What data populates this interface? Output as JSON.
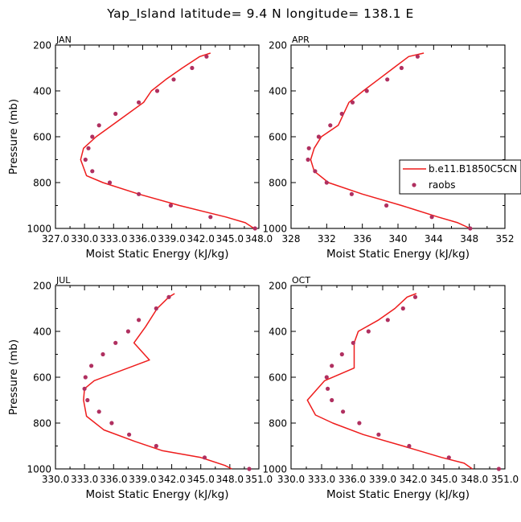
{
  "figure": {
    "title": "Yap_Island  latitude= 9.4 N longitude= 138.1 E"
  },
  "legend": {
    "model_label": "b.e11.B1850C5CN",
    "obs_label": "raobs"
  },
  "colors": {
    "model_line": "#ee1c1c",
    "obs_points": "#b03060",
    "axes": "#000000"
  },
  "chart_data": [
    {
      "type": "line",
      "panel_label": "JAN",
      "xlabel": "Moist Static Energy (kJ/kg)",
      "ylabel": "Pressure (mb)",
      "xlim": [
        327.0,
        348.0
      ],
      "ylim": [
        1000,
        200
      ],
      "xticks": [
        "327.0",
        "330.0",
        "333.0",
        "336.0",
        "339.0",
        "342.0",
        "345.0",
        "348.0"
      ],
      "yticks": [
        "200",
        "400",
        "600",
        "800",
        "1000"
      ],
      "series": [
        {
          "name": "b.e11.B1850C5CN",
          "x": [
            343.0,
            341.9,
            340.1,
            338.4,
            336.9,
            336.1,
            333.5,
            331.2,
            329.9,
            329.6,
            330.2,
            331.9,
            335.6,
            339.8,
            344.6,
            346.6,
            347.5
          ],
          "y": [
            235,
            250,
            300,
            350,
            400,
            450,
            530,
            600,
            650,
            700,
            770,
            800,
            850,
            900,
            950,
            975,
            1000
          ]
        },
        {
          "name": "raobs",
          "x": [
            342.6,
            341.1,
            339.2,
            337.5,
            335.6,
            333.2,
            331.5,
            330.8,
            330.4,
            330.1,
            330.8,
            332.6,
            335.6,
            338.9,
            343.0,
            347.6
          ],
          "y": [
            250,
            300,
            350,
            400,
            450,
            500,
            550,
            600,
            650,
            700,
            750,
            800,
            850,
            900,
            950,
            1000
          ]
        }
      ]
    },
    {
      "type": "line",
      "panel_label": "APR",
      "xlabel": "Moist Static Energy (kJ/kg)",
      "ylabel": "",
      "xlim": [
        328,
        352
      ],
      "ylim": [
        1000,
        200
      ],
      "xticks": [
        "328",
        "332",
        "336",
        "340",
        "344",
        "348",
        "352"
      ],
      "yticks": [
        "200",
        "400",
        "600",
        "800",
        "1000"
      ],
      "series": [
        {
          "name": "b.e11.B1850C5CN",
          "x": [
            342.9,
            341.2,
            339.5,
            337.8,
            336.1,
            334.5,
            333.3,
            331.4,
            330.6,
            330.2,
            330.6,
            332.2,
            336.0,
            340.4,
            344.5,
            346.7,
            348.1
          ],
          "y": [
            235,
            250,
            300,
            350,
            400,
            450,
            550,
            600,
            650,
            700,
            750,
            800,
            850,
            900,
            950,
            975,
            1000
          ]
        },
        {
          "name": "raobs",
          "x": [
            342.2,
            340.4,
            338.8,
            336.5,
            334.9,
            333.7,
            332.4,
            331.1,
            330.0,
            329.9,
            330.7,
            332.0,
            334.8,
            338.7,
            343.8,
            348.1
          ],
          "y": [
            250,
            300,
            350,
            400,
            450,
            500,
            550,
            600,
            650,
            700,
            750,
            800,
            850,
            900,
            950,
            1000
          ]
        }
      ]
    },
    {
      "type": "line",
      "panel_label": "JUL",
      "xlabel": "Moist Static Energy (kJ/kg)",
      "ylabel": "Pressure (mb)",
      "xlim": [
        330.0,
        351.0
      ],
      "ylim": [
        1000,
        200
      ],
      "xticks": [
        "330.0",
        "333.0",
        "336.0",
        "339.0",
        "342.0",
        "345.0",
        "348.0",
        "351.0"
      ],
      "yticks": [
        "200",
        "400",
        "600",
        "800",
        "1000"
      ],
      "series": [
        {
          "name": "b.e11.B1850C5CN",
          "x": [
            342.3,
            341.7,
            340.5,
            339.3,
            338.1,
            339.7,
            334.0,
            333.0,
            332.9,
            333.2,
            335.0,
            338.2,
            341.0,
            345.0,
            347.5,
            348.2
          ],
          "y": [
            235,
            250,
            300,
            380,
            450,
            525,
            615,
            650,
            700,
            770,
            830,
            880,
            920,
            950,
            985,
            1000
          ]
        },
        {
          "name": "raobs",
          "x": [
            341.7,
            340.4,
            338.6,
            337.5,
            336.2,
            334.9,
            333.7,
            333.1,
            333.0,
            333.3,
            334.5,
            335.8,
            337.6,
            340.4,
            345.4,
            350.0
          ],
          "y": [
            250,
            300,
            350,
            400,
            450,
            500,
            550,
            600,
            650,
            700,
            750,
            800,
            850,
            900,
            950,
            1000
          ]
        }
      ]
    },
    {
      "type": "line",
      "panel_label": "OCT",
      "xlabel": "Moist Static Energy (kJ/kg)",
      "ylabel": "",
      "xlim": [
        330.0,
        351.0
      ],
      "ylim": [
        1000,
        200
      ],
      "xticks": [
        "330.0",
        "333.0",
        "336.0",
        "339.0",
        "342.0",
        "345.0",
        "348.0",
        "351.0"
      ],
      "yticks": [
        "200",
        "400",
        "600",
        "800",
        "1000"
      ],
      "series": [
        {
          "name": "b.e11.B1850C5CN",
          "x": [
            342.3,
            341.4,
            340.2,
            338.6,
            336.6,
            336.2,
            336.2,
            333.3,
            332.6,
            331.6,
            332.4,
            334.1,
            337.1,
            341.0,
            344.8,
            347.0,
            347.8
          ],
          "y": [
            235,
            250,
            300,
            350,
            400,
            450,
            560,
            615,
            650,
            700,
            765,
            800,
            850,
            900,
            950,
            975,
            1000
          ]
        },
        {
          "name": "raobs",
          "x": [
            342.2,
            341.0,
            339.5,
            337.6,
            336.1,
            335.0,
            334.0,
            333.5,
            333.6,
            334.0,
            335.1,
            336.7,
            338.6,
            341.6,
            345.5,
            350.4
          ],
          "y": [
            250,
            300,
            350,
            400,
            450,
            500,
            550,
            600,
            650,
            700,
            750,
            800,
            850,
            900,
            950,
            1000
          ]
        }
      ]
    }
  ]
}
